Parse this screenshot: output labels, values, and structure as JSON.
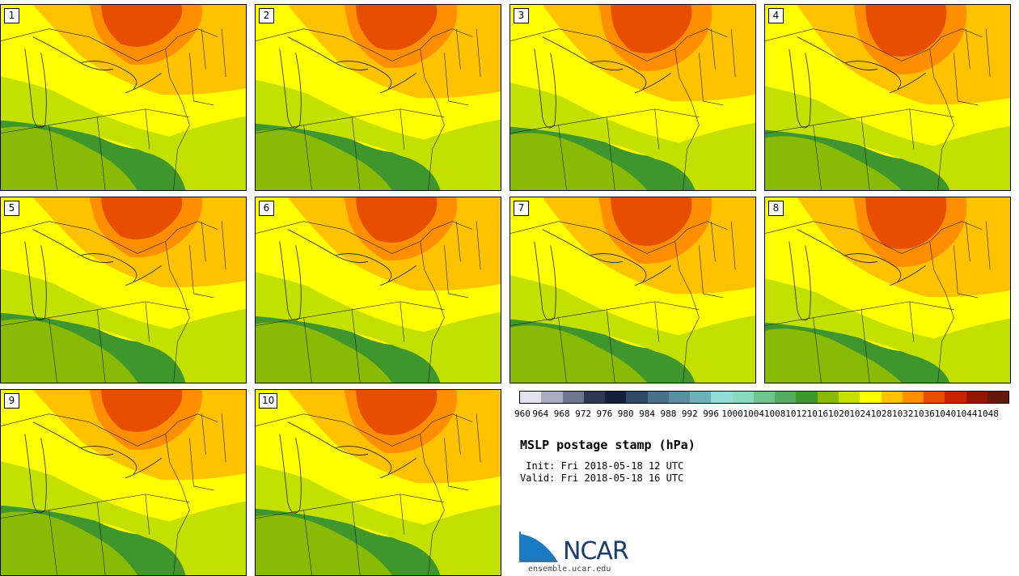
{
  "panels": [
    {
      "label": "1"
    },
    {
      "label": "2"
    },
    {
      "label": "3"
    },
    {
      "label": "4"
    },
    {
      "label": "5"
    },
    {
      "label": "6"
    },
    {
      "label": "7"
    },
    {
      "label": "8"
    },
    {
      "label": "9"
    },
    {
      "label": "10"
    }
  ],
  "colorbar": {
    "colors": [
      "#e2e3ee",
      "#aaadc1",
      "#6e7591",
      "#2c3856",
      "#15203c",
      "#2e4a68",
      "#47728a",
      "#5a8ea3",
      "#6fb1bb",
      "#93dbd4",
      "#88d9bd",
      "#70c490",
      "#55ab60",
      "#3f962d",
      "#88ba06",
      "#c3e000",
      "#ffff00",
      "#ffc200",
      "#ff8e00",
      "#e84e00",
      "#c82200",
      "#901800",
      "#621a0a"
    ],
    "labels": [
      "960",
      "964",
      "968",
      "972",
      "976",
      "980",
      "984",
      "988",
      "992",
      "996",
      "1000",
      "1004",
      "1008",
      "1012",
      "1016",
      "1020",
      "1024",
      "1028",
      "1032",
      "1036",
      "1040",
      "1044",
      "1048"
    ]
  },
  "title": "MSLP postage stamp (hPa)",
  "init": " Init: Fri 2018-05-18 12 UTC",
  "valid": "Valid: Fri 2018-05-18 16 UTC",
  "logo_text": "NCAR",
  "url": "ensemble.ucar.edu"
}
